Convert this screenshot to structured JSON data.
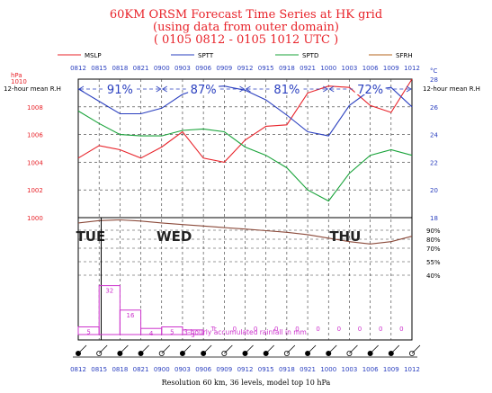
{
  "header": {
    "title_line1": "60KM ORSM Forecast Time Series at HK grid",
    "title_line2": "(using data from outer domain)",
    "title_line3": "( 0105 0812 - 0105 1012 UTC )"
  },
  "legend": [
    {
      "label": "MSLP",
      "color": "#e8232a"
    },
    {
      "label": "SPTT",
      "color": "#2a3fbf"
    },
    {
      "label": "SPTD",
      "color": "#19a33a"
    },
    {
      "label": "SFRH",
      "color": "#b5651d"
    }
  ],
  "footer": {
    "text": "Resolution 60 km, 36 levels, model top 10 hPa"
  },
  "chart_data": [
    {
      "type": "line",
      "title": "60KM ORSM Forecast Time Series at HK grid",
      "time_labels": [
        "0812",
        "0815",
        "0818",
        "0821",
        "0900",
        "0903",
        "0906",
        "0909",
        "0912",
        "0915",
        "0918",
        "0921",
        "1000",
        "1003",
        "1006",
        "1009",
        "1012"
      ],
      "left_axis": {
        "unit_top": "hPa",
        "unit_top_value": "1010",
        "secondary_label": "12-hour mean R.H",
        "ticks": [
          "1008",
          "1006",
          "1004",
          "1002",
          "1000"
        ],
        "range": [
          1000,
          1010
        ]
      },
      "right_axis": {
        "unit": "°C",
        "secondary_label": "12-hour mean R.H",
        "ticks": [
          "28",
          "26",
          "24",
          "22",
          "20",
          "18"
        ],
        "range": [
          18,
          28
        ]
      },
      "rh_means": [
        {
          "label": "91%",
          "from": 0,
          "to": 4
        },
        {
          "label": "87%",
          "from": 4,
          "to": 8
        },
        {
          "label": "81%",
          "from": 8,
          "to": 12
        },
        {
          "label": "72%",
          "from": 12,
          "to": 16
        }
      ],
      "series": [
        {
          "name": "MSLP",
          "axis": "left",
          "color": "#e8232a",
          "values": [
            1004.3,
            1005.2,
            1004.9,
            1004.3,
            1005.1,
            1006.2,
            1004.3,
            1004.0,
            1005.6,
            1006.6,
            1006.7,
            1009.0,
            1009.5,
            1009.4,
            1008.1,
            1007.6,
            1010.0
          ]
        },
        {
          "name": "SPTT",
          "axis": "right",
          "color": "#2a3fbf",
          "values": [
            27.3,
            26.4,
            25.5,
            25.5,
            25.9,
            26.9,
            27.4,
            27.5,
            27.2,
            26.5,
            25.4,
            24.2,
            23.9,
            26.1,
            27.2,
            27.4,
            26.0
          ]
        },
        {
          "name": "SPTD",
          "axis": "right",
          "color": "#19a33a",
          "values": [
            25.7,
            24.8,
            24.0,
            23.9,
            23.9,
            24.3,
            24.4,
            24.2,
            23.1,
            22.5,
            21.6,
            20.0,
            19.2,
            21.2,
            22.5,
            22.9,
            22.5
          ]
        }
      ]
    },
    {
      "type": "line",
      "series": [
        {
          "name": "SFRH",
          "color": "#8b4a3a",
          "values": [
            91.5,
            92.5,
            92.8,
            92.3,
            91.5,
            90.8,
            90.2,
            89.5,
            88.9,
            88.2,
            87.5,
            86.5,
            85.0,
            83.5,
            82.5,
            83.5,
            85.8
          ]
        }
      ],
      "right_axis": {
        "ticks": [
          "90%",
          "80%",
          "70%",
          "55%",
          "40%"
        ]
      },
      "day_labels": [
        {
          "label": "TUE",
          "at": 0.6
        },
        {
          "label": "WED",
          "at": 4.6
        },
        {
          "label": "THU",
          "at": 12.8
        }
      ]
    },
    {
      "type": "bar",
      "title": "3-hourly accumulated rainfall in mm",
      "categories": [
        "0815",
        "0818",
        "0821",
        "0900",
        "0903",
        "0906",
        "0909",
        "0912",
        "0915",
        "0918",
        "0921",
        "1000",
        "1003",
        "1006",
        "1009",
        "1012"
      ],
      "values": [
        5,
        32,
        16,
        4,
        5,
        3,
        0,
        0,
        0,
        0,
        0,
        0,
        0,
        0,
        0,
        0
      ],
      "labels": [
        "5",
        "32",
        "16",
        "4",
        "5",
        "3",
        "Tr",
        "0",
        "0",
        "0",
        "0",
        "0",
        "0",
        "0",
        "0",
        "0"
      ],
      "color": "#cc33cc"
    }
  ]
}
